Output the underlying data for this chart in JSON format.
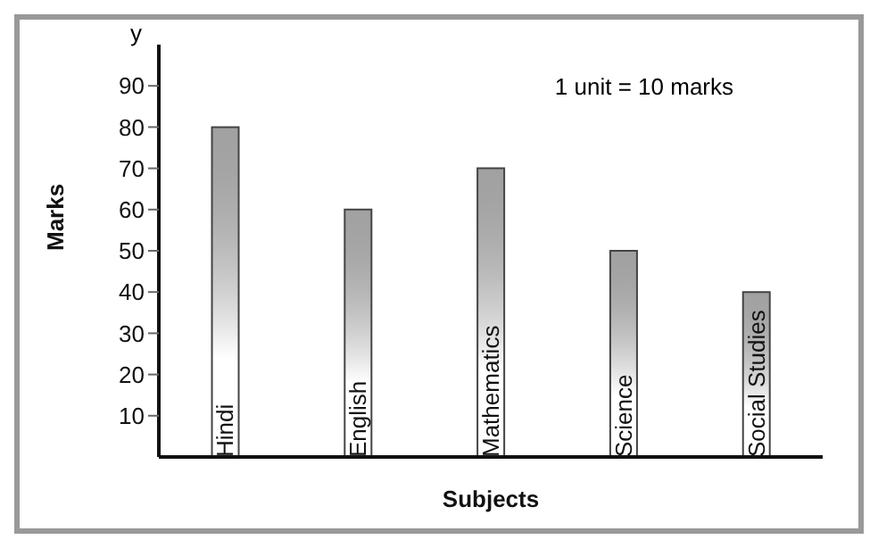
{
  "chart_data": {
    "type": "bar",
    "xlabel": "Subjects",
    "ylabel": "Marks",
    "categories": [
      "Hindi",
      "English",
      "Mathematics",
      "Science",
      "Social Studies"
    ],
    "values": [
      80,
      60,
      70,
      50,
      40
    ],
    "color": "#444444",
    "ylim": [
      0,
      100
    ],
    "yticks": [
      10,
      20,
      30,
      40,
      50,
      60,
      70,
      80,
      90
    ],
    "annotations": [
      "y",
      "1 unit = 10 marks"
    ]
  }
}
